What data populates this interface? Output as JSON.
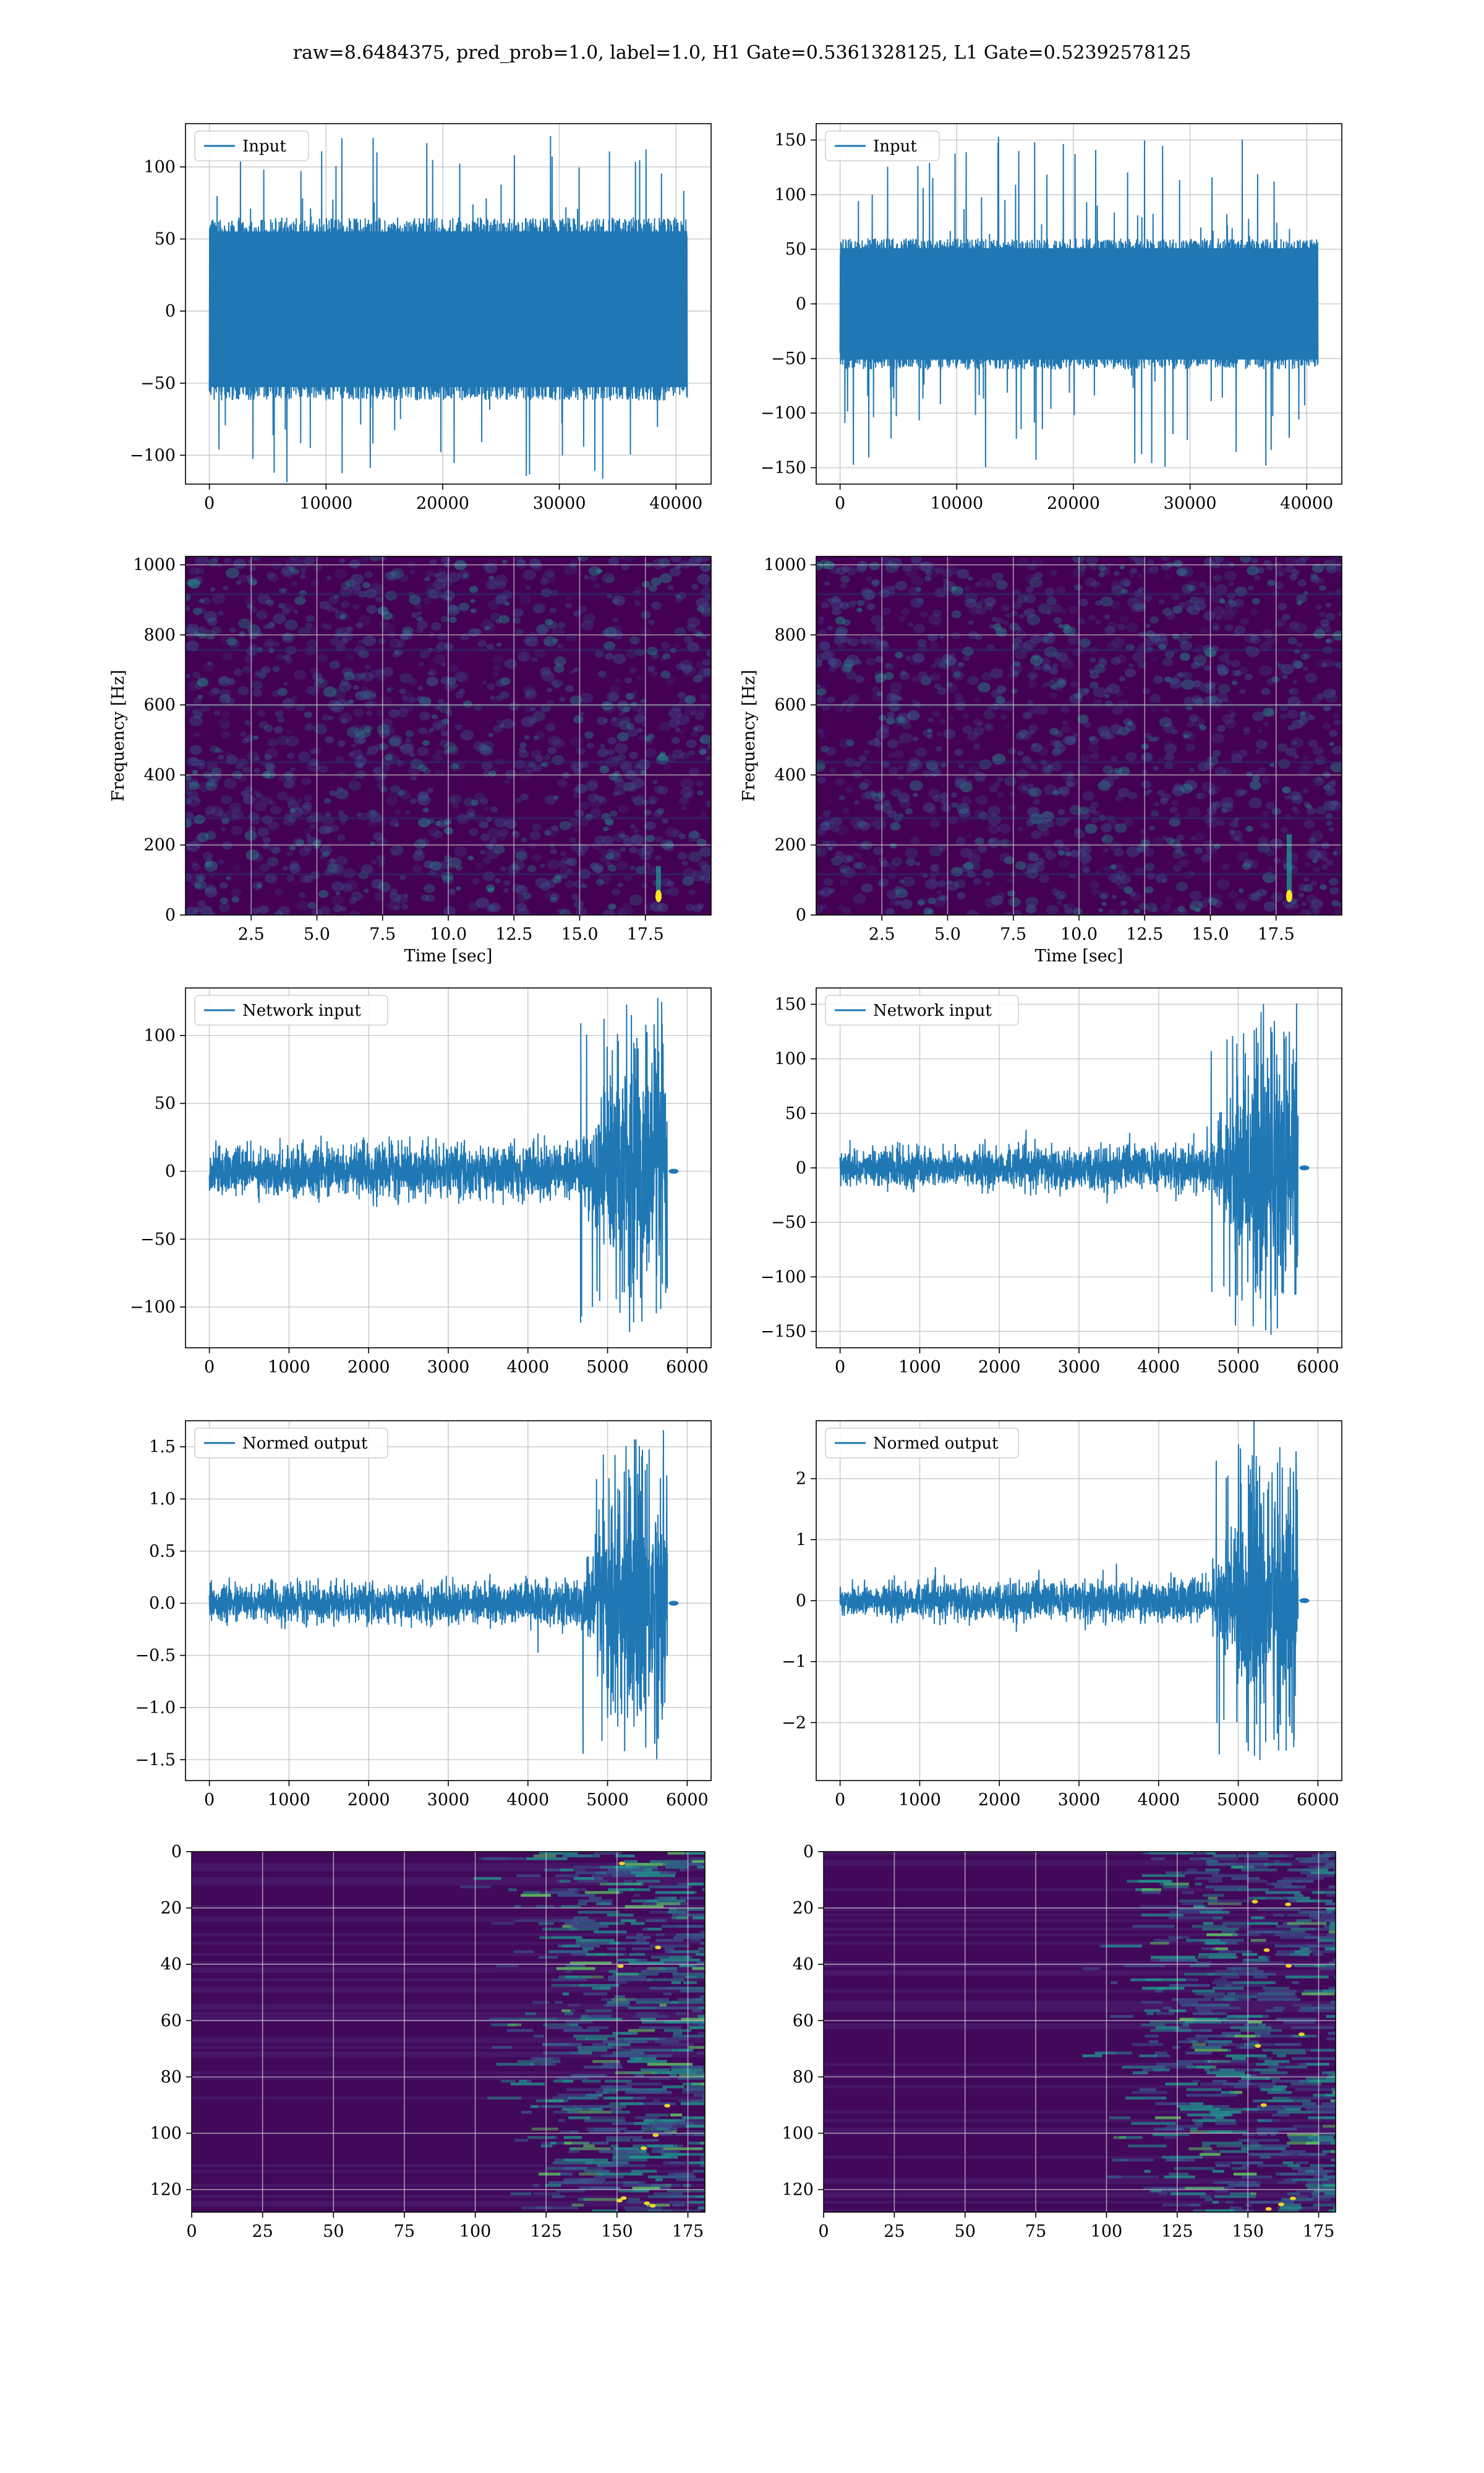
{
  "figure": {
    "title": "raw=8.6484375, pred_prob=1.0, label=1.0, H1 Gate=0.5361328125, L1 Gate=0.52392578125",
    "colors": {
      "line": "#1f77b4",
      "grid": "#b0b0b0",
      "spec_bg": "#440154",
      "spec_mid": "#3b528b",
      "spec_hi": "#21918c",
      "spec_peak": "#fde725"
    }
  },
  "chart_data": [
    {
      "id": "input-h1",
      "type": "line",
      "grid": true,
      "legend": "top-left",
      "series": [
        {
          "name": "Input",
          "envelope": {
            "x_start": 0,
            "x_end": 40960,
            "core_upper": 65,
            "core_lower": -62,
            "peak_max": 124,
            "peak_min": -121
          }
        }
      ],
      "xlim": [
        -2048,
        43008
      ],
      "ylim": [
        -120,
        130
      ],
      "xticks": [
        0,
        10000,
        20000,
        30000,
        40000
      ],
      "yticks": [
        -100,
        -50,
        0,
        50,
        100
      ],
      "xlabel": "",
      "ylabel": ""
    },
    {
      "id": "input-l1",
      "type": "line",
      "grid": true,
      "legend": "top-left",
      "series": [
        {
          "name": "Input",
          "envelope": {
            "x_start": 0,
            "x_end": 40960,
            "core_upper": 60,
            "core_lower": -60,
            "peak_max": 153,
            "peak_min": -152
          }
        }
      ],
      "xlim": [
        -2048,
        43008
      ],
      "ylim": [
        -165,
        165
      ],
      "xticks": [
        0,
        10000,
        20000,
        30000,
        40000
      ],
      "yticks": [
        -150,
        -100,
        -50,
        0,
        50,
        100,
        150
      ],
      "xlabel": "",
      "ylabel": ""
    },
    {
      "id": "spectrogram-h1",
      "type": "heatmap",
      "grid": true,
      "xlim": [
        0,
        20
      ],
      "ylim": [
        0,
        1024
      ],
      "xticks": [
        2.5,
        5.0,
        7.5,
        10.0,
        12.5,
        15.0,
        17.5
      ],
      "yticks": [
        0,
        200,
        400,
        600,
        800,
        1000
      ],
      "xlabel": "Time [sec]",
      "ylabel": "Frequency [Hz]",
      "hotspot": {
        "time": 18.0,
        "freq_low": 40,
        "freq_high": 140
      }
    },
    {
      "id": "spectrogram-l1",
      "type": "heatmap",
      "grid": true,
      "xlim": [
        0,
        20
      ],
      "ylim": [
        0,
        1024
      ],
      "xticks": [
        2.5,
        5.0,
        7.5,
        10.0,
        12.5,
        15.0,
        17.5
      ],
      "yticks": [
        0,
        200,
        400,
        600,
        800,
        1000
      ],
      "xlabel": "Time [sec]",
      "ylabel": "Frequency [Hz]",
      "hotspot": {
        "time": 18.0,
        "freq_low": 40,
        "freq_high": 230
      }
    },
    {
      "id": "network-input-h1",
      "type": "line",
      "grid": true,
      "legend": "top-left",
      "series": [
        {
          "name": "Network input",
          "envelope": {
            "x_start": 0,
            "x_end": 5750,
            "base_amp": 18,
            "burst_start": 4650,
            "burst_peak_x": 5200,
            "burst_max": 124,
            "burst_min": -119
          }
        }
      ],
      "xlim": [
        -300,
        6300
      ],
      "ylim": [
        -130,
        135
      ],
      "xticks": [
        0,
        1000,
        2000,
        3000,
        4000,
        5000,
        6000
      ],
      "yticks": [
        -100,
        -50,
        0,
        50,
        100
      ],
      "xlabel": "",
      "ylabel": ""
    },
    {
      "id": "network-input-l1",
      "type": "line",
      "grid": true,
      "legend": "top-left",
      "series": [
        {
          "name": "Network input",
          "envelope": {
            "x_start": 0,
            "x_end": 5750,
            "base_amp": 18,
            "burst_start": 4650,
            "burst_peak_x": 5200,
            "burst_max": 153,
            "burst_min": -152
          }
        }
      ],
      "xlim": [
        -300,
        6300
      ],
      "ylim": [
        -165,
        165
      ],
      "xticks": [
        0,
        1000,
        2000,
        3000,
        4000,
        5000,
        6000
      ],
      "yticks": [
        -150,
        -100,
        -50,
        0,
        50,
        100,
        150
      ],
      "xlabel": "",
      "ylabel": ""
    },
    {
      "id": "normed-output-h1",
      "type": "line",
      "grid": true,
      "legend": "top-left",
      "series": [
        {
          "name": "Normed output",
          "envelope": {
            "x_start": 0,
            "x_end": 5750,
            "base_amp": 0.18,
            "burst_start": 4650,
            "burst_peak_x": 5200,
            "burst_max": 1.63,
            "burst_min": -1.55
          }
        }
      ],
      "xlim": [
        -300,
        6300
      ],
      "ylim": [
        -1.7,
        1.75
      ],
      "xticks": [
        0,
        1000,
        2000,
        3000,
        4000,
        5000,
        6000
      ],
      "yticks": [
        -1.5,
        -1.0,
        -0.5,
        0.0,
        0.5,
        1.0,
        1.5
      ],
      "xlabel": "",
      "ylabel": ""
    },
    {
      "id": "normed-output-l1",
      "type": "line",
      "grid": true,
      "legend": "top-left",
      "series": [
        {
          "name": "Normed output",
          "envelope": {
            "x_start": 0,
            "x_end": 5750,
            "base_amp": 0.3,
            "burst_start": 4650,
            "burst_peak_x": 5200,
            "burst_max": 2.6,
            "burst_min": -2.6
          }
        }
      ],
      "xlim": [
        -300,
        6300
      ],
      "ylim": [
        -2.95,
        2.95
      ],
      "xticks": [
        0,
        1000,
        2000,
        3000,
        4000,
        5000,
        6000
      ],
      "yticks": [
        -2,
        -1,
        0,
        1,
        2
      ],
      "xlabel": "",
      "ylabel": ""
    },
    {
      "id": "feature-map-h1",
      "type": "heatmap",
      "grid": true,
      "y_inverted": true,
      "xlim": [
        0,
        181
      ],
      "ylim": [
        0,
        128
      ],
      "xticks": [
        0,
        25,
        50,
        75,
        100,
        125,
        150,
        175
      ],
      "yticks": [
        0,
        20,
        40,
        60,
        80,
        100,
        120
      ],
      "xlabel": "",
      "ylabel": "",
      "active_from_x": 120
    },
    {
      "id": "feature-map-l1",
      "type": "heatmap",
      "grid": true,
      "y_inverted": true,
      "xlim": [
        0,
        181
      ],
      "ylim": [
        0,
        128
      ],
      "xticks": [
        0,
        25,
        50,
        75,
        100,
        125,
        150,
        175
      ],
      "yticks": [
        0,
        20,
        40,
        60,
        80,
        100,
        120
      ],
      "xlabel": "",
      "ylabel": "",
      "active_from_x": 110
    }
  ]
}
